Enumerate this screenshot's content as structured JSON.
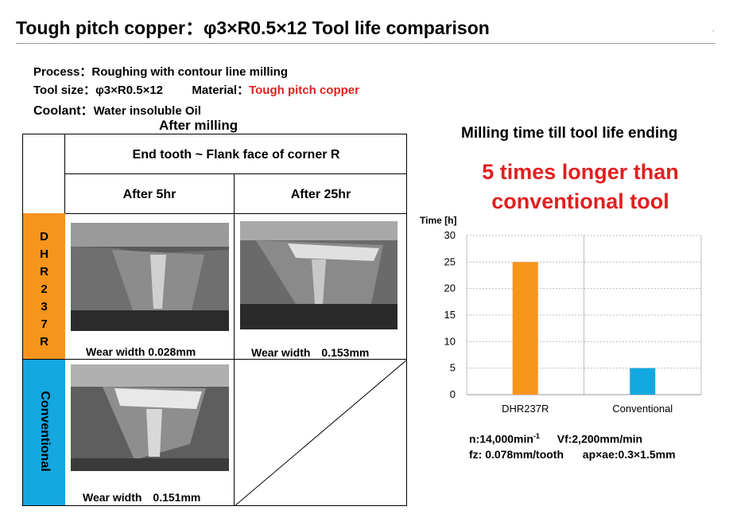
{
  "title": "Tough pitch copper：φ3×R0.5×12 Tool life comparison",
  "info": {
    "process_label": "Process：",
    "process_value": "Roughing with contour line milling",
    "tool_label": "Tool size：",
    "tool_value": "φ3×R0.5×12",
    "material_label": "Material：",
    "material_value": "Tough pitch copper",
    "coolant_label": "Coolant：",
    "coolant_value": "Water insoluble Oil"
  },
  "table": {
    "heading": "After milling",
    "header": "End tooth ~ Flank face of corner R",
    "col1": "After 5hr",
    "col2": "After 25hr",
    "row1_label": "DHR237R",
    "row2_label": "Conventional",
    "wear_dhr_5": "Wear width 0.028mm",
    "wear_dhr_25": "Wear width　0.153mm",
    "wear_conv_5": "Wear width　0.151mm"
  },
  "chart_caption": "Milling time till tool life ending",
  "highlight_line1": "5 times longer than",
  "highlight_line2": "conventional tool",
  "chart_data": {
    "type": "bar",
    "ylabel": "Time [h]",
    "ylim": [
      0,
      30
    ],
    "yticks": [
      0,
      5,
      10,
      15,
      20,
      25,
      30
    ],
    "grid": true,
    "categories": [
      "DHR237R",
      "Conventional"
    ],
    "values": [
      25,
      5
    ],
    "colors": [
      "#f7941d",
      "#14a7e0"
    ]
  },
  "conditions": {
    "n": "n:14,000min",
    "n_sup": "-1",
    "vf": "Vf:2,200mm/min",
    "fz": "fz: 0.078mm/tooth",
    "apae": "ap×ae:0.3×1.5mm"
  }
}
